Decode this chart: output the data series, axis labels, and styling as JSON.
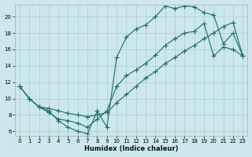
{
  "xlabel": "Humidex (Indice chaleur)",
  "bg_color": "#cce8ec",
  "grid_color": "#aacccc",
  "line_color": "#1a6e6a",
  "xlim": [
    -0.5,
    23.5
  ],
  "ylim": [
    5.5,
    21.5
  ],
  "xticks": [
    0,
    1,
    2,
    3,
    4,
    5,
    6,
    7,
    8,
    9,
    10,
    11,
    12,
    13,
    14,
    15,
    16,
    17,
    18,
    19,
    20,
    21,
    22,
    23
  ],
  "yticks": [
    6,
    8,
    10,
    12,
    14,
    16,
    18,
    20
  ],
  "line1_x": [
    0,
    1,
    2,
    3,
    4,
    5,
    6,
    7,
    8,
    9,
    10,
    11,
    12,
    13,
    14,
    15,
    16,
    17,
    18,
    19,
    20,
    21,
    22,
    23
  ],
  "line1_y": [
    11.5,
    10.0,
    9.0,
    8.5,
    7.3,
    6.5,
    6.0,
    5.7,
    8.5,
    6.5,
    15.0,
    17.5,
    18.5,
    19.0,
    20.0,
    21.3,
    21.0,
    21.3,
    21.2,
    20.5,
    20.2,
    16.7,
    18.0,
    15.2
  ],
  "line2_x": [
    0,
    1,
    2,
    3,
    4,
    5,
    6,
    7,
    8,
    9,
    10,
    11,
    12,
    13,
    14,
    15,
    16,
    17,
    18,
    19,
    20,
    21,
    22,
    23
  ],
  "line2_y": [
    11.5,
    10.0,
    9.0,
    8.3,
    7.5,
    7.3,
    7.0,
    6.5,
    7.5,
    8.5,
    11.5,
    12.8,
    13.5,
    14.3,
    15.3,
    16.5,
    17.3,
    18.0,
    18.2,
    19.2,
    15.2,
    16.3,
    16.0,
    15.2
  ],
  "line3_x": [
    0,
    1,
    2,
    3,
    4,
    5,
    6,
    7,
    8,
    9,
    10,
    11,
    12,
    13,
    14,
    15,
    16,
    17,
    18,
    19,
    20,
    21,
    22,
    23
  ],
  "line3_y": [
    11.5,
    10.0,
    9.0,
    8.8,
    8.5,
    8.2,
    8.0,
    7.8,
    8.0,
    8.3,
    9.5,
    10.5,
    11.5,
    12.5,
    13.3,
    14.3,
    15.0,
    15.8,
    16.5,
    17.3,
    18.0,
    18.8,
    19.3,
    15.2
  ]
}
